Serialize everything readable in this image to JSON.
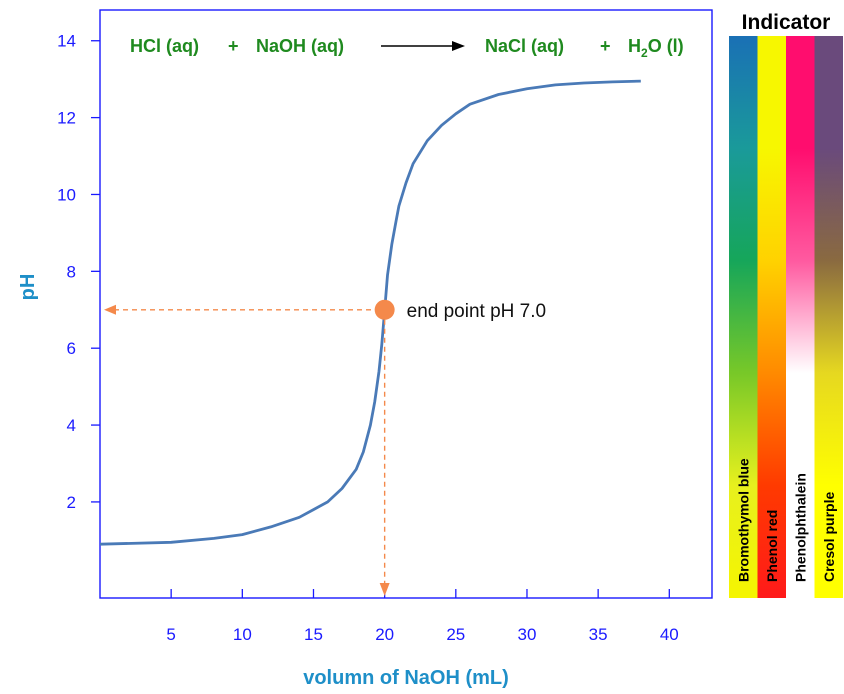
{
  "chart_data": {
    "type": "line",
    "xlabel": "volumn of NaOH (mL)",
    "ylabel": "pH",
    "xlim": [
      0,
      43
    ],
    "ylim": [
      -0.5,
      14.8
    ],
    "x_ticks": [
      5,
      10,
      15,
      20,
      25,
      30,
      35,
      40
    ],
    "y_ticks": [
      2,
      4,
      6,
      8,
      10,
      12,
      14
    ],
    "grid": false,
    "series": [
      {
        "color": "#4a7ab7",
        "x": [
          0,
          5,
          8,
          10,
          12,
          14,
          15,
          16,
          17,
          18,
          18.5,
          19,
          19.3,
          19.6,
          19.8,
          20,
          20.2,
          20.5,
          20.8,
          21,
          21.5,
          22,
          22.5,
          23,
          24,
          25,
          26,
          28,
          30,
          32,
          34,
          36,
          38
        ],
        "y": [
          0.9,
          0.95,
          1.05,
          1.15,
          1.35,
          1.6,
          1.8,
          2.0,
          2.35,
          2.85,
          3.3,
          4.0,
          4.6,
          5.4,
          6.1,
          7.0,
          7.9,
          8.7,
          9.3,
          9.7,
          10.3,
          10.8,
          11.1,
          11.4,
          11.8,
          12.1,
          12.35,
          12.6,
          12.75,
          12.85,
          12.9,
          12.93,
          12.95
        ]
      }
    ],
    "equation": {
      "reactant1": "HCl (aq)",
      "plus1": "+",
      "reactant2": "NaOH (aq)",
      "product1": "NaCl (aq)",
      "plus2": "+",
      "product2_base": "H",
      "product2_sub": "2",
      "product2_rest": "O (l)"
    },
    "end_point": {
      "x": 20,
      "y": 7.0,
      "label": "end point pH 7.0",
      "color": "#f4894b"
    },
    "indicator": {
      "title": "Indicator",
      "bars": [
        {
          "name": "Bromothymol blue",
          "colors": [
            "#1a70b5",
            "#1a9a9a",
            "#16a65a",
            "#78c828",
            "#e7f01e",
            "#f5f500"
          ]
        },
        {
          "name": "Phenol red",
          "colors": [
            "#f7f700",
            "#f7f700",
            "#ffd200",
            "#ff8a00",
            "#ff3a00",
            "#ff1a1a"
          ]
        },
        {
          "name": "Phenolphthalein",
          "colors": [
            "#ff0d6e",
            "#ff0d6e",
            "#ff5aa0",
            "#ffffff",
            "#ffffff",
            "#ffffff"
          ]
        },
        {
          "name": "Cresol purple",
          "colors": [
            "#6a4a7c",
            "#6a4a7c",
            "#8a6a40",
            "#e6d820",
            "#ffff00",
            "#ffff00"
          ]
        }
      ]
    }
  }
}
